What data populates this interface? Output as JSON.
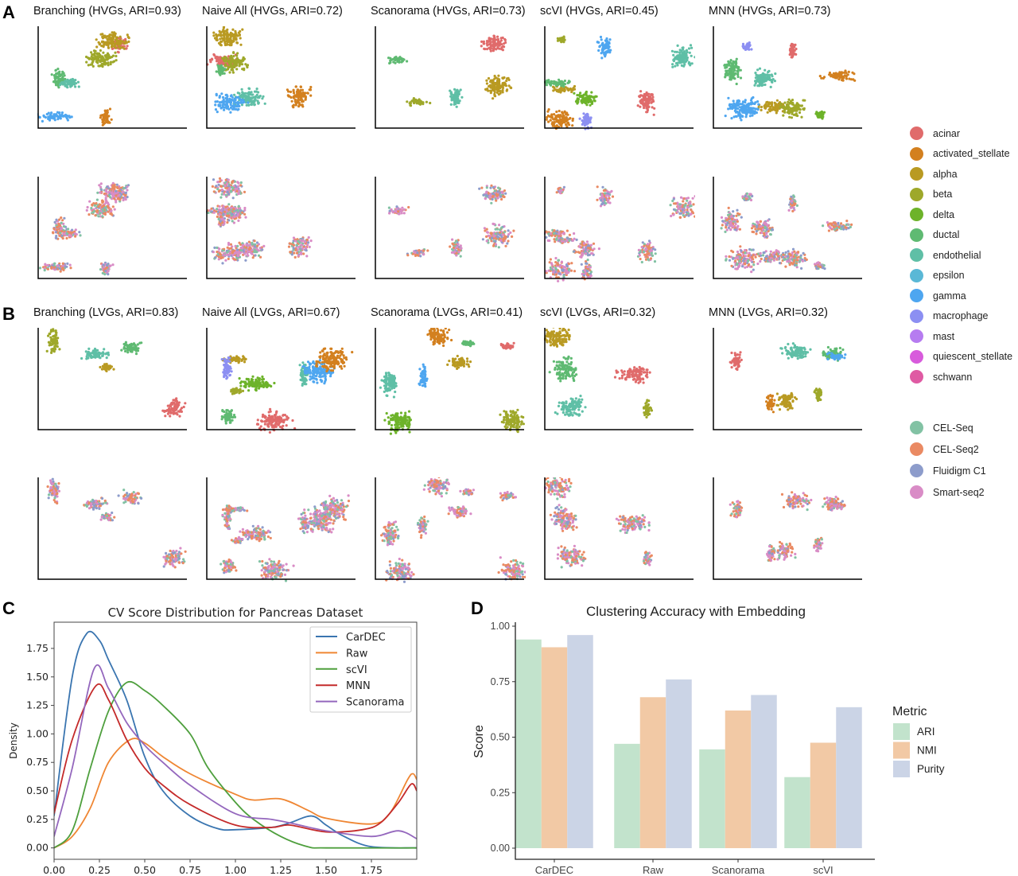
{
  "panel_labels": {
    "a": "A",
    "b": "B",
    "c": "C",
    "d": "D"
  },
  "umap_panels": {
    "a_titles": [
      "Branching (HVGs, ARI=0.93)",
      "Naive All (HVGs, ARI=0.72)",
      "Scanorama (HVGs, ARI=0.73)",
      "scVI (HVGs, ARI=0.45)",
      "MNN (HVGs, ARI=0.73)"
    ],
    "b_titles": [
      "Branching (LVGs, ARI=0.83)",
      "Naive All (LVGs, ARI=0.67)",
      "Scanorama (LVGs, ARI=0.41)",
      "scVI (LVGs, ARI=0.32)",
      "MNN (LVGs, ARI=0.32)"
    ]
  },
  "legend_cell_types": [
    {
      "label": "acinar",
      "color": "#e06b6b"
    },
    {
      "label": "activated_stellate",
      "color": "#d3801f"
    },
    {
      "label": "alpha",
      "color": "#b99a22"
    },
    {
      "label": "beta",
      "color": "#9ea82a"
    },
    {
      "label": "delta",
      "color": "#6db32a"
    },
    {
      "label": "ductal",
      "color": "#5fba72"
    },
    {
      "label": "endothelial",
      "color": "#5fbfa6"
    },
    {
      "label": "epsilon",
      "color": "#5ab8d6"
    },
    {
      "label": "gamma",
      "color": "#4ea6f0"
    },
    {
      "label": "macrophage",
      "color": "#8c8ff2"
    },
    {
      "label": "mast",
      "color": "#b67cf0"
    },
    {
      "label": "quiescent_stellate",
      "color": "#d85bdc"
    },
    {
      "label": "schwann",
      "color": "#df5aa3"
    }
  ],
  "legend_batches": [
    {
      "label": "CEL-Seq",
      "color": "#82c2a4"
    },
    {
      "label": "CEL-Seq2",
      "color": "#ea8a63"
    },
    {
      "label": "Fluidigm C1",
      "color": "#8d9ccb"
    },
    {
      "label": "Smart-seq2",
      "color": "#d98cc6"
    }
  ],
  "chart_data": [
    {
      "type": "line",
      "title": "CV Score Distribution for Pancreas Dataset",
      "xlabel": "",
      "ylabel": "Density",
      "xlim": [
        0,
        2.0
      ],
      "ylim": [
        -0.1,
        1.98
      ],
      "xticks": [
        "0.00",
        "0.25",
        "0.50",
        "0.75",
        "1.00",
        "1.25",
        "1.50",
        "1.75"
      ],
      "yticks": [
        "0.00",
        "0.25",
        "0.50",
        "0.75",
        "1.00",
        "1.25",
        "1.50",
        "1.75"
      ],
      "legend": "top-right",
      "grid": false,
      "series": [
        {
          "name": "CarDEC",
          "color": "#3a75b0",
          "x": [
            0,
            0.1,
            0.18,
            0.25,
            0.3,
            0.4,
            0.5,
            0.6,
            0.75,
            0.9,
            1.0,
            1.2,
            1.3,
            1.42,
            1.5,
            1.6,
            1.75,
            2.0
          ],
          "y": [
            0.28,
            1.5,
            1.88,
            1.82,
            1.65,
            1.3,
            0.8,
            0.5,
            0.28,
            0.17,
            0.16,
            0.18,
            0.22,
            0.28,
            0.2,
            0.1,
            0.01,
            0
          ]
        },
        {
          "name": "Raw",
          "color": "#ef8633",
          "x": [
            0,
            0.1,
            0.2,
            0.3,
            0.42,
            0.5,
            0.6,
            0.75,
            1.0,
            1.1,
            1.25,
            1.4,
            1.5,
            1.75,
            1.85,
            1.95,
            1.98,
            2.0
          ],
          "y": [
            0,
            0.1,
            0.35,
            0.75,
            0.95,
            0.92,
            0.8,
            0.65,
            0.47,
            0.42,
            0.43,
            0.33,
            0.26,
            0.21,
            0.3,
            0.6,
            0.65,
            0.6
          ]
        },
        {
          "name": "scVI",
          "color": "#4e9f3d",
          "x": [
            0,
            0.1,
            0.2,
            0.3,
            0.4,
            0.5,
            0.6,
            0.75,
            0.85,
            1.0,
            1.1,
            1.25,
            1.4,
            1.5,
            2.0
          ],
          "y": [
            0,
            0.15,
            0.7,
            1.2,
            1.45,
            1.38,
            1.25,
            1.0,
            0.7,
            0.4,
            0.25,
            0.1,
            0.01,
            0,
            0
          ]
        },
        {
          "name": "MNN",
          "color": "#c42a2a",
          "x": [
            0,
            0.1,
            0.23,
            0.3,
            0.4,
            0.5,
            0.6,
            0.75,
            1.0,
            1.2,
            1.3,
            1.5,
            1.7,
            1.8,
            1.9,
            1.97,
            2.0
          ],
          "y": [
            0.3,
            0.95,
            1.42,
            1.3,
            0.95,
            0.7,
            0.55,
            0.38,
            0.2,
            0.18,
            0.2,
            0.14,
            0.16,
            0.22,
            0.4,
            0.56,
            0.5
          ]
        },
        {
          "name": "Scanorama",
          "color": "#9467bd",
          "x": [
            0,
            0.1,
            0.22,
            0.3,
            0.4,
            0.5,
            0.6,
            0.75,
            1.0,
            1.2,
            1.3,
            1.5,
            1.75,
            1.9,
            2.0
          ],
          "y": [
            0.1,
            0.7,
            1.57,
            1.4,
            1.1,
            0.9,
            0.75,
            0.55,
            0.3,
            0.25,
            0.22,
            0.15,
            0.1,
            0.15,
            0.08
          ]
        }
      ]
    },
    {
      "type": "bar",
      "title": "Clustering Accuracy with Embedding",
      "xlabel": "",
      "ylabel": "Score",
      "ylim": [
        0,
        1.0
      ],
      "yticks": [
        "0.00",
        "0.25",
        "0.50",
        "0.75",
        "1.00"
      ],
      "categories": [
        "CarDEC",
        "Raw",
        "Scanorama",
        "scVI"
      ],
      "legend_title": "Metric",
      "legend": "right",
      "grid": false,
      "series": [
        {
          "name": "ARI",
          "color": "#c2e3cc",
          "values": [
            0.94,
            0.47,
            0.445,
            0.32
          ]
        },
        {
          "name": "NMI",
          "color": "#f2c9a5",
          "values": [
            0.905,
            0.68,
            0.62,
            0.475
          ]
        },
        {
          "name": "Purity",
          "color": "#cbd4e6",
          "values": [
            0.96,
            0.76,
            0.69,
            0.635
          ]
        }
      ]
    }
  ]
}
